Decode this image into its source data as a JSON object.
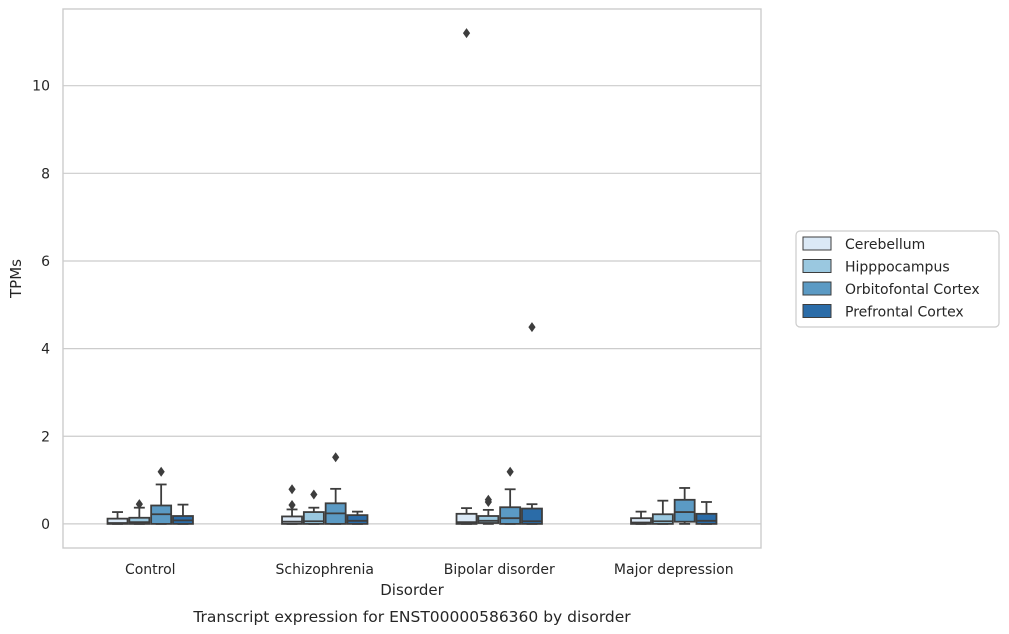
{
  "chart_data": {
    "type": "boxplot",
    "xlabel": "Disorder",
    "ylabel": "TPMs",
    "caption": "Transcript expression for ENST00000586360 by disorder",
    "ylim": [
      -0.55,
      11.75
    ],
    "yticks": [
      0,
      2,
      4,
      6,
      8,
      10
    ],
    "grid": true,
    "legend_position": "right",
    "categories": [
      "Control",
      "Schizophrenia",
      "Bipolar disorder",
      "Major depression"
    ],
    "series": [
      {
        "name": "Cerebellum",
        "color": "#dbe9f6",
        "boxes": [
          {
            "whisker_low": 0,
            "q1": 0,
            "median": 0.02,
            "q3": 0.12,
            "whisker_high": 0.27,
            "outliers": []
          },
          {
            "whisker_low": 0,
            "q1": 0,
            "median": 0.05,
            "q3": 0.17,
            "whisker_high": 0.33,
            "outliers": [
              0.43,
              0.79
            ]
          },
          {
            "whisker_low": 0,
            "q1": 0,
            "median": 0.04,
            "q3": 0.23,
            "whisker_high": 0.36,
            "outliers": [
              11.2
            ]
          },
          {
            "whisker_low": 0,
            "q1": 0,
            "median": 0.03,
            "q3": 0.13,
            "whisker_high": 0.28,
            "outliers": []
          }
        ]
      },
      {
        "name": "Hipppocampus",
        "color": "#9ac8e0",
        "boxes": [
          {
            "whisker_low": 0,
            "q1": 0,
            "median": 0.04,
            "q3": 0.14,
            "whisker_high": 0.37,
            "outliers": [
              0.45
            ]
          },
          {
            "whisker_low": 0,
            "q1": 0,
            "median": 0.06,
            "q3": 0.27,
            "whisker_high": 0.37,
            "outliers": [
              0.67
            ]
          },
          {
            "whisker_low": 0,
            "q1": 0.02,
            "median": 0.07,
            "q3": 0.18,
            "whisker_high": 0.32,
            "outliers": [
              0.5,
              0.55
            ]
          },
          {
            "whisker_low": 0,
            "q1": 0,
            "median": 0.06,
            "q3": 0.22,
            "whisker_high": 0.53,
            "outliers": []
          }
        ]
      },
      {
        "name": "Orbitofontal Cortex",
        "color": "#5b9ac4",
        "boxes": [
          {
            "whisker_low": 0,
            "q1": 0,
            "median": 0.22,
            "q3": 0.42,
            "whisker_high": 0.9,
            "outliers": [
              1.19
            ]
          },
          {
            "whisker_low": 0,
            "q1": 0,
            "median": 0.24,
            "q3": 0.47,
            "whisker_high": 0.8,
            "outliers": [
              1.52
            ]
          },
          {
            "whisker_low": 0,
            "q1": 0,
            "median": 0.13,
            "q3": 0.38,
            "whisker_high": 0.79,
            "outliers": [
              1.19
            ]
          },
          {
            "whisker_low": 0,
            "q1": 0.05,
            "median": 0.27,
            "q3": 0.55,
            "whisker_high": 0.82,
            "outliers": []
          }
        ]
      },
      {
        "name": "Prefrontal Cortex",
        "color": "#2b6ca8",
        "boxes": [
          {
            "whisker_low": 0,
            "q1": 0,
            "median": 0.08,
            "q3": 0.18,
            "whisker_high": 0.44,
            "outliers": []
          },
          {
            "whisker_low": 0,
            "q1": 0,
            "median": 0.07,
            "q3": 0.2,
            "whisker_high": 0.28,
            "outliers": []
          },
          {
            "whisker_low": 0,
            "q1": 0,
            "median": 0.06,
            "q3": 0.35,
            "whisker_high": 0.45,
            "outliers": [
              4.49
            ]
          },
          {
            "whisker_low": 0,
            "q1": 0,
            "median": 0.07,
            "q3": 0.23,
            "whisker_high": 0.5,
            "outliers": []
          }
        ]
      }
    ]
  }
}
